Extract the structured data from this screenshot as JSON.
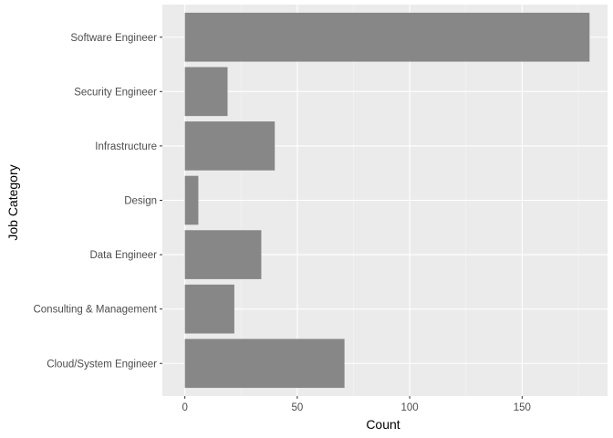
{
  "chart_data": {
    "type": "bar",
    "orientation": "horizontal",
    "title": "",
    "xlabel": "Count",
    "ylabel": "Job Category",
    "categories": [
      "Cloud/System Engineer",
      "Consulting & Management",
      "Data Engineer",
      "Design",
      "Infrastructure",
      "Security Engineer",
      "Software Engineer"
    ],
    "values": [
      71,
      22,
      34,
      6,
      40,
      19,
      180
    ],
    "xlim": [
      -10,
      188
    ],
    "xticks": [
      0,
      50,
      100,
      150
    ],
    "grid": true,
    "legend": "none",
    "colors": {
      "panel_background": "#EBEBEB",
      "grid_major": "#FFFFFF",
      "grid_minor": "#F5F5F5",
      "bar": "#878787",
      "tick": "#333333"
    }
  }
}
